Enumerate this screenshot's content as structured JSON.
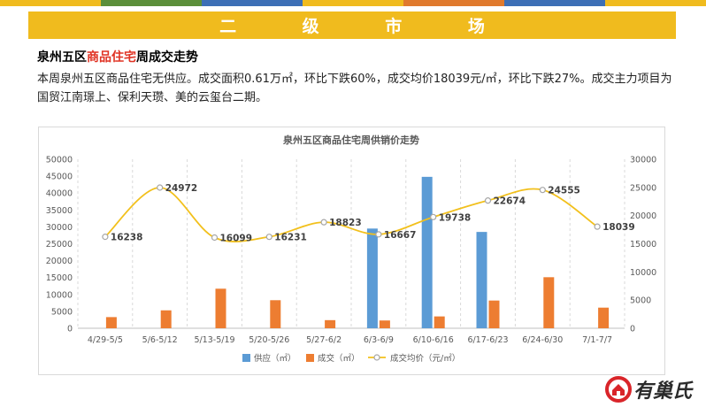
{
  "banner": {
    "title": "二 级 市 场"
  },
  "section": {
    "title_pre": "泉州五区",
    "title_highlight": "商品住宅",
    "title_post": "周成交走势"
  },
  "paragraph": "本周泉州五区商品住宅无供应。成交面积0.61万㎡，环比下跌60%，成交均价18039元/㎡，环比下跌27%。成交主力项目为国贸江南璟上、保利天瓒、美的云玺台二期。",
  "logo": {
    "text": "有巢氏",
    "icon": "house-logo-icon"
  },
  "colors": {
    "topstrip": [
      "#f0bb1e",
      "#5b8f3a",
      "#3d6fb6",
      "#f0bb1e",
      "#e07a2e",
      "#3d6fb6",
      "#f0bb1e"
    ],
    "banner": "#f0bb1e",
    "supply": "#5b9bd5",
    "deal": "#ed7d31",
    "price": "#f2c01c"
  },
  "chart_data": {
    "type": "bar",
    "title": "泉州五区商品住宅周供销价走势",
    "categories": [
      "4/29-5/5",
      "5/6-5/12",
      "5/13-5/19",
      "5/20-5/26",
      "5/27-6/2",
      "6/3-6/9",
      "6/10-6/16",
      "6/17-6/23",
      "6/24-6/30",
      "7/1-7/7"
    ],
    "series": [
      {
        "name": "供应（㎡）",
        "type": "bar",
        "axis": "left",
        "values": [
          0,
          0,
          0,
          0,
          0,
          29500,
          44800,
          28500,
          0,
          0
        ]
      },
      {
        "name": "成交（㎡）",
        "type": "bar",
        "axis": "left",
        "values": [
          3300,
          5300,
          11700,
          8300,
          2400,
          2300,
          3500,
          8200,
          15100,
          6100
        ]
      },
      {
        "name": "成交均价（元/㎡）",
        "type": "line",
        "axis": "right",
        "values": [
          16238,
          24972,
          16099,
          16231,
          18823,
          16667,
          19738,
          22674,
          24555,
          18039
        ],
        "labels": [
          "16238",
          "24972",
          "16099",
          "16231",
          "18823",
          "16667",
          "19738",
          "22674",
          "24555",
          "18039"
        ]
      }
    ],
    "y_left": {
      "min": 0,
      "max": 50000,
      "step": 5000,
      "ticks": [
        "0",
        "5000",
        "10000",
        "15000",
        "20000",
        "25000",
        "30000",
        "35000",
        "40000",
        "45000",
        "50000"
      ]
    },
    "y_right": {
      "min": 0,
      "max": 30000,
      "step": 5000,
      "ticks": [
        "0",
        "5000",
        "10000",
        "15000",
        "20000",
        "25000",
        "30000"
      ]
    },
    "grid": "vertical-dashed",
    "legend": "bottom"
  }
}
